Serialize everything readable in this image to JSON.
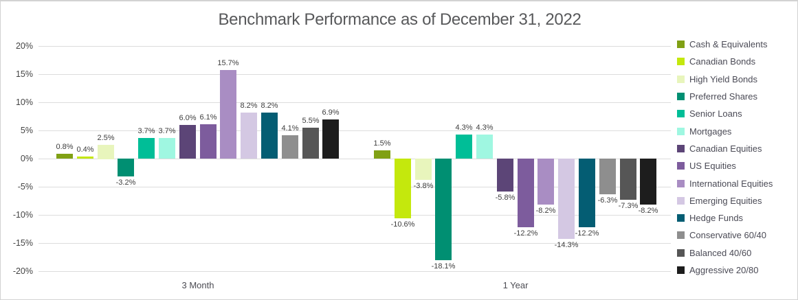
{
  "title": "Benchmark Performance as of December 31, 2022",
  "chart_data": {
    "type": "bar",
    "title": "Benchmark Performance as of December 31, 2022",
    "categories": [
      "3 Month",
      "1 Year"
    ],
    "series": [
      {
        "name": "Cash & Equivalents",
        "color": "#80A014",
        "values": [
          0.8,
          1.5
        ]
      },
      {
        "name": "Canadian Bonds",
        "color": "#C4E80D",
        "values": [
          0.4,
          -10.6
        ]
      },
      {
        "name": "High Yield Bonds",
        "color": "#E8F5BC",
        "values": [
          2.5,
          -3.8
        ]
      },
      {
        "name": "Preferred Shares",
        "color": "#008F72",
        "values": [
          -3.2,
          -18.1
        ]
      },
      {
        "name": "Senior Loans",
        "color": "#00BE97",
        "values": [
          3.7,
          4.3
        ]
      },
      {
        "name": "Mortgages",
        "color": "#9FF7E1",
        "values": [
          3.7,
          4.3
        ]
      },
      {
        "name": "Canadian Equities",
        "color": "#5C4577",
        "values": [
          6.0,
          -5.8
        ]
      },
      {
        "name": "US Equities",
        "color": "#7D5C9D",
        "values": [
          6.1,
          -12.2
        ]
      },
      {
        "name": "International Equities",
        "color": "#A98DC3",
        "values": [
          15.7,
          -8.2
        ]
      },
      {
        "name": "Emerging Equities",
        "color": "#D4C8E3",
        "values": [
          8.2,
          -14.3
        ]
      },
      {
        "name": "Hedge Funds",
        "color": "#045D73",
        "values": [
          8.2,
          -12.2
        ]
      },
      {
        "name": "Conservative 60/40",
        "color": "#8E8E8E",
        "values": [
          4.1,
          -6.3
        ]
      },
      {
        "name": "Balanced 40/60",
        "color": "#565656",
        "values": [
          5.5,
          -7.3
        ]
      },
      {
        "name": "Aggressive 20/80",
        "color": "#1D1D1D",
        "values": [
          6.9,
          -8.2
        ]
      }
    ],
    "y_ticks": [
      "20%",
      "15%",
      "10%",
      "5%",
      "0%",
      "-5%",
      "-10%",
      "-15%",
      "-20%"
    ],
    "y_tick_values": [
      20,
      15,
      10,
      5,
      0,
      -5,
      -10,
      -15,
      -20
    ],
    "ylim": [
      -20,
      20
    ],
    "value_label_format": "one_decimal_percent",
    "grid": true,
    "legend_position": "right"
  }
}
